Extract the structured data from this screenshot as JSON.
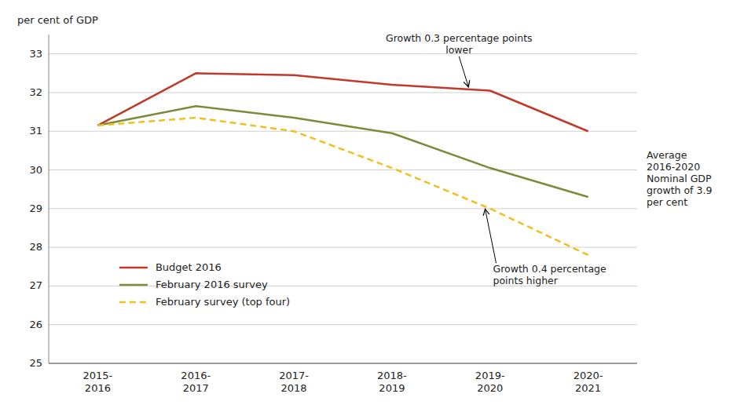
{
  "chart_data": {
    "type": "line",
    "y_label": "per cent of GDP",
    "categories": [
      "2015-\n2016",
      "2016-\n2017",
      "2017-\n2018",
      "2018-\n2019",
      "2019-\n2020",
      "2020-\n2021"
    ],
    "series": [
      {
        "name": "Budget 2016",
        "color": "#c0392b",
        "line_style": "solid",
        "values": [
          31.15,
          32.5,
          32.45,
          32.2,
          32.05,
          31.0
        ]
      },
      {
        "name": "February 2016 survey",
        "color": "#7a8c3a",
        "line_style": "solid",
        "values": [
          31.15,
          31.65,
          31.35,
          30.95,
          30.05,
          29.3
        ]
      },
      {
        "name": "February survey (top four)",
        "color": "#f0c020",
        "line_style": "dashed",
        "values": [
          31.15,
          31.35,
          31.0,
          30.05,
          29.0,
          27.8
        ]
      }
    ],
    "ylim": [
      25,
      33.5
    ],
    "yticks": [
      25,
      26,
      27,
      28,
      29,
      30,
      31,
      32,
      33
    ],
    "grid": true,
    "legend": "lower left",
    "annotations": [
      "Growth 0.3 percentage points\nlower",
      "Growth 0.4 percentage\npoints higher",
      "Average\n2016-2020\nNominal GDP\ngrowth of 3.9\nper cent"
    ]
  }
}
